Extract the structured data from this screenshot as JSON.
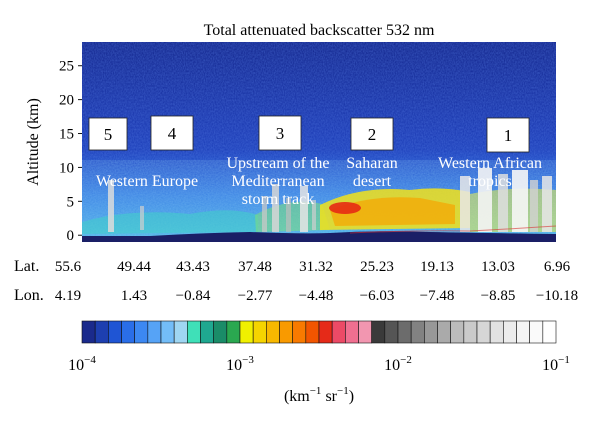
{
  "chart_data": {
    "type": "heatmap",
    "title": "Total attenuated backscatter 532 nm",
    "ylabel": "Altitude (km)",
    "ylim": [
      -1,
      28.5
    ],
    "y_ticks": [
      "0",
      "5",
      "10",
      "15",
      "20",
      "25"
    ],
    "y_tick_values": [
      0,
      5,
      10,
      15,
      20,
      25
    ],
    "x_rows": [
      {
        "label": "Lat.",
        "values": [
          "55.6",
          "49.44",
          "43.43",
          "37.48",
          "31.32",
          "25.23",
          "19.13",
          "13.03",
          "6.96"
        ]
      },
      {
        "label": "Lon.",
        "values": [
          "4.19",
          "1.43",
          "−0.84",
          "−2.77",
          "−4.48",
          "−6.03",
          "−7.48",
          "−8.85",
          "−10.18"
        ]
      }
    ],
    "regions": [
      {
        "number": "5",
        "name": ""
      },
      {
        "number": "4",
        "name": "Western Europe"
      },
      {
        "number": "3",
        "name": "Upstream of the Mediterranean storm track",
        "lines": [
          "Upstream of the",
          "Mediterranean",
          "storm track"
        ]
      },
      {
        "number": "2",
        "name": "Saharan desert",
        "lines": [
          "Saharan",
          "desert"
        ]
      },
      {
        "number": "1",
        "name": "Western African tropics",
        "lines": [
          "Western African",
          "tropics"
        ]
      }
    ],
    "colorbar": {
      "colors": [
        "#1a2a8c",
        "#1d3fb0",
        "#1f55d4",
        "#2a6ee8",
        "#3c88f2",
        "#56a3f6",
        "#73bdf8",
        "#9fd6f2",
        "#3fe0b8",
        "#1fa890",
        "#1a8c68",
        "#2aa850",
        "#f0f000",
        "#f5d400",
        "#f8b800",
        "#f99a00",
        "#f87a00",
        "#f25500",
        "#e52a18",
        "#ec4a66",
        "#f06f90",
        "#f296b0",
        "#3a3a3a",
        "#555555",
        "#6c6c6c",
        "#828282",
        "#989898",
        "#aaaaaa",
        "#bcbcbc",
        "#cacaca",
        "#d6d6d6",
        "#e2e2e2",
        "#ececec",
        "#f4f4f4",
        "#fafafa",
        "#ffffff"
      ],
      "tick_labels": [
        {
          "base": "10",
          "exp": "−4",
          "value": 0.0001
        },
        {
          "base": "10",
          "exp": "−3",
          "value": 0.001
        },
        {
          "base": "10",
          "exp": "−2",
          "value": 0.01
        },
        {
          "base": "10",
          "exp": "−1",
          "value": 0.1
        }
      ],
      "scale": "log",
      "unit": {
        "open": "(km",
        "exp1": "−1",
        "mid": " sr",
        "exp2": "−1",
        "close": ")"
      }
    }
  }
}
